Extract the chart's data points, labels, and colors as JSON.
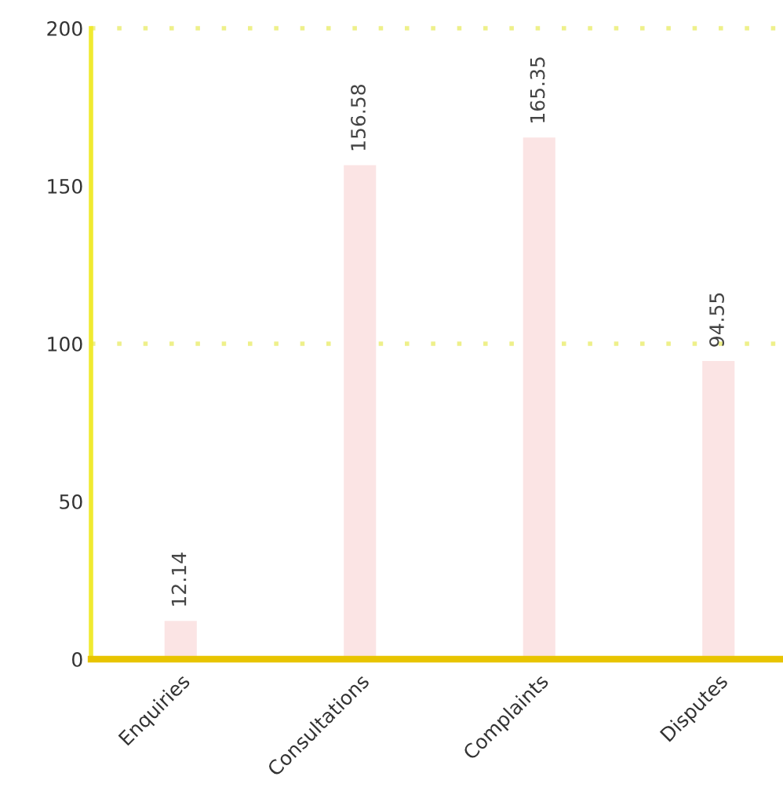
{
  "chart_data": {
    "type": "bar",
    "categories": [
      "Enquiries",
      "Consultations",
      "Complaints",
      "Disputes"
    ],
    "values": [
      12.14,
      156.58,
      165.35,
      94.55
    ],
    "color": "#fbe4e4",
    "data_labels": true,
    "ylim": [
      0,
      200
    ],
    "yticks": [
      0,
      50,
      100,
      150,
      200
    ],
    "ref_lines": [
      {
        "axis": "y",
        "value": 100,
        "color": "#eef08a",
        "line_style": "dotted"
      },
      {
        "axis": "y",
        "value": 200,
        "color": "#eef08a",
        "line_style": "dotted"
      }
    ]
  }
}
